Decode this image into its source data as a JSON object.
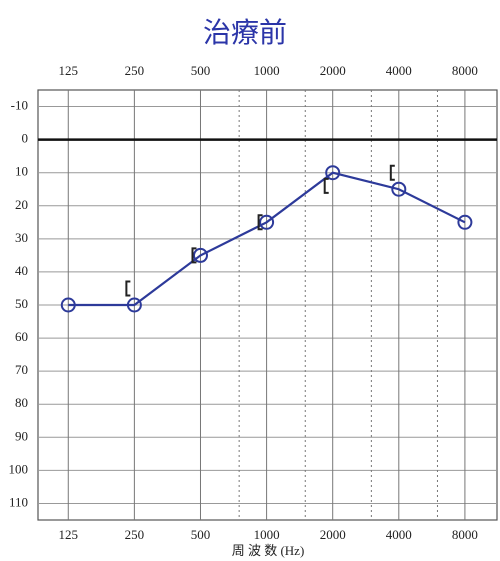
{
  "chart_data": {
    "type": "line",
    "title": "治療前",
    "x_label": "周 波 数 (Hz)",
    "x": [
      125,
      250,
      500,
      1000,
      2000,
      4000,
      8000
    ],
    "xscale": "log",
    "xlim": [
      91,
      11200
    ],
    "xticks": [
      125,
      250,
      500,
      1000,
      2000,
      4000,
      8000
    ],
    "xminor": [
      750,
      1500,
      3000,
      6000
    ],
    "ylim": [
      -15,
      115
    ],
    "y_reversed": true,
    "yticks": [
      -10,
      0,
      10,
      20,
      30,
      40,
      50,
      60,
      70,
      80,
      90,
      100,
      110
    ],
    "zero_line": true,
    "grid": true,
    "series": [
      {
        "color": "#2d3a9a",
        "marker": "circle",
        "values": [
          50,
          50,
          35,
          25,
          10,
          15,
          25
        ]
      },
      {
        "color": "#222222",
        "marker": "bracket",
        "values": [
          null,
          45,
          35,
          25,
          14,
          10,
          null
        ]
      }
    ]
  }
}
